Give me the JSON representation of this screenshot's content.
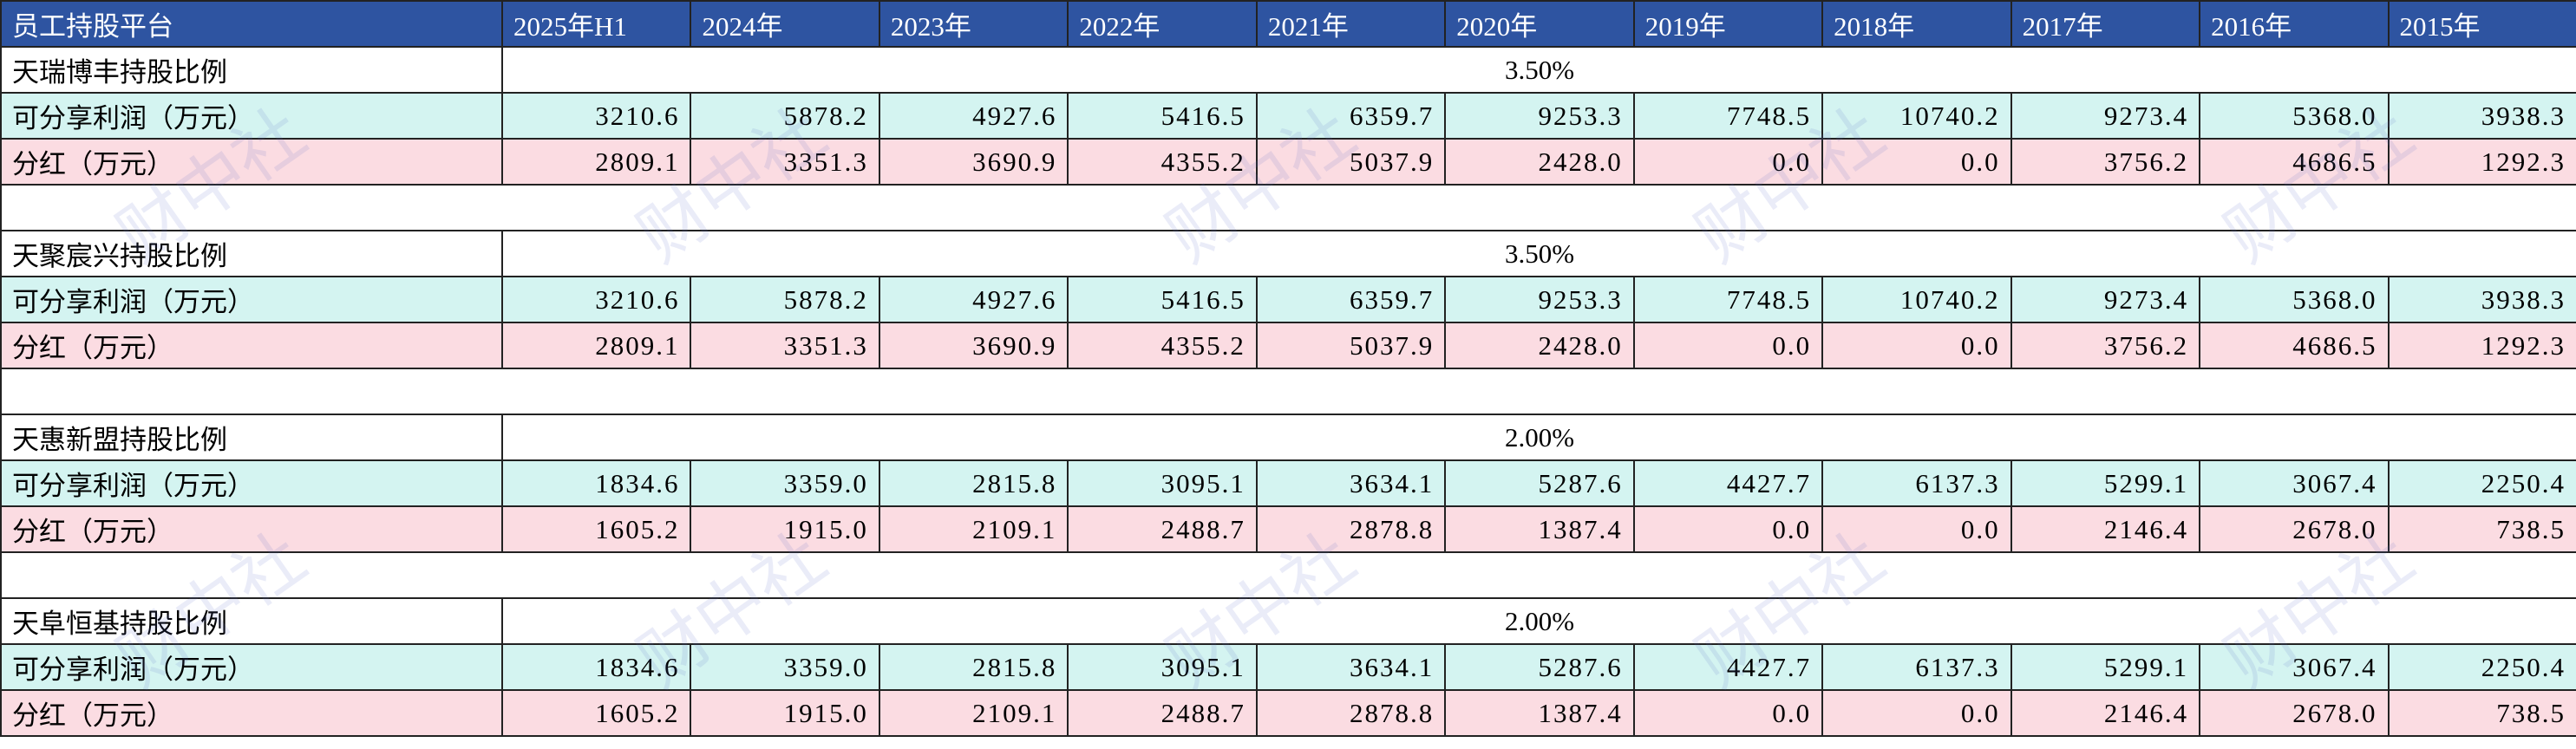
{
  "header": {
    "title": "员工持股平台",
    "columns": [
      "2025年H1",
      "2024年",
      "2023年",
      "2022年",
      "2021年",
      "2020年",
      "2019年",
      "2018年",
      "2017年",
      "2016年",
      "2015年"
    ]
  },
  "groups": [
    {
      "name": "天瑞博丰持股比例",
      "ratio": "3.50%",
      "profit_label": "可分享利润（万元）",
      "profit": [
        "3210.6",
        "5878.2",
        "4927.6",
        "5416.5",
        "6359.7",
        "9253.3",
        "7748.5",
        "10740.2",
        "9273.4",
        "5368.0",
        "3938.3"
      ],
      "dividend_label": "分红（万元）",
      "dividend": [
        "2809.1",
        "3351.3",
        "3690.9",
        "4355.2",
        "5037.9",
        "2428.0",
        "0.0",
        "0.0",
        "3756.2",
        "4686.5",
        "1292.3"
      ]
    },
    {
      "name": "天聚宸兴持股比例",
      "ratio": "3.50%",
      "profit_label": "可分享利润（万元）",
      "profit": [
        "3210.6",
        "5878.2",
        "4927.6",
        "5416.5",
        "6359.7",
        "9253.3",
        "7748.5",
        "10740.2",
        "9273.4",
        "5368.0",
        "3938.3"
      ],
      "dividend_label": "分红（万元）",
      "dividend": [
        "2809.1",
        "3351.3",
        "3690.9",
        "4355.2",
        "5037.9",
        "2428.0",
        "0.0",
        "0.0",
        "3756.2",
        "4686.5",
        "1292.3"
      ]
    },
    {
      "name": "天惠新盟持股比例",
      "ratio": "2.00%",
      "profit_label": "可分享利润（万元）",
      "profit": [
        "1834.6",
        "3359.0",
        "2815.8",
        "3095.1",
        "3634.1",
        "5287.6",
        "4427.7",
        "6137.3",
        "5299.1",
        "3067.4",
        "2250.4"
      ],
      "dividend_label": "分红（万元）",
      "dividend": [
        "1605.2",
        "1915.0",
        "2109.1",
        "2488.7",
        "2878.8",
        "1387.4",
        "0.0",
        "0.0",
        "2146.4",
        "2678.0",
        "738.5"
      ]
    },
    {
      "name": "天阜恒基持股比例",
      "ratio": "2.00%",
      "profit_label": "可分享利润（万元）",
      "profit": [
        "1834.6",
        "3359.0",
        "2815.8",
        "3095.1",
        "3634.1",
        "5287.6",
        "4427.7",
        "6137.3",
        "5299.1",
        "3067.4",
        "2250.4"
      ],
      "dividend_label": "分红（万元）",
      "dividend": [
        "1605.2",
        "1915.0",
        "2109.1",
        "2488.7",
        "2878.8",
        "1387.4",
        "0.0",
        "0.0",
        "2146.4",
        "2678.0",
        "738.5"
      ]
    }
  ],
  "watermark": "财中社"
}
